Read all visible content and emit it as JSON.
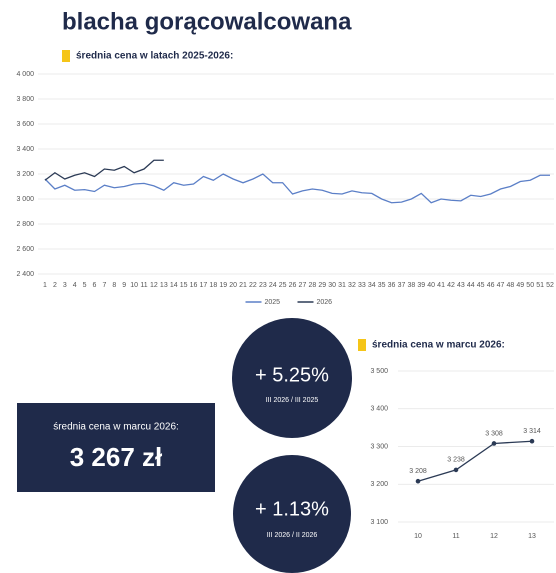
{
  "header": {
    "title": "blacha gorącowalcowana"
  },
  "summary": {
    "label": "średnia cena w marcu 2026:",
    "value": "3 267 zł"
  },
  "circles": [
    {
      "value": "+ 5.25%",
      "caption": "III 2026 / III 2025"
    },
    {
      "value": "+ 1.13%",
      "caption": "III 2026 / II 2026"
    }
  ],
  "chart_data": [
    {
      "type": "line",
      "title": "średnia cena w latach 2025-2026:",
      "categories": [
        "1",
        "2",
        "3",
        "4",
        "5",
        "6",
        "7",
        "8",
        "9",
        "10",
        "11",
        "12",
        "13",
        "14",
        "15",
        "16",
        "17",
        "18",
        "19",
        "20",
        "21",
        "22",
        "23",
        "24",
        "25",
        "26",
        "27",
        "28",
        "29",
        "30",
        "31",
        "32",
        "33",
        "34",
        "35",
        "36",
        "37",
        "38",
        "39",
        "40",
        "41",
        "42",
        "43",
        "44",
        "45",
        "46",
        "47",
        "48",
        "49",
        "50",
        "51",
        "52"
      ],
      "series": [
        {
          "name": "2025",
          "color": "#5b7fc7",
          "values": [
            3160,
            3080,
            3110,
            3070,
            3075,
            3060,
            3110,
            3090,
            3100,
            3120,
            3125,
            3105,
            3070,
            3130,
            3110,
            3120,
            3180,
            3150,
            3200,
            3160,
            3130,
            3160,
            3200,
            3130,
            3130,
            3040,
            3065,
            3080,
            3070,
            3045,
            3040,
            3065,
            3050,
            3045,
            3000,
            2970,
            2975,
            3000,
            3045,
            2970,
            3000,
            2990,
            2985,
            3030,
            3020,
            3040,
            3080,
            3100,
            3140,
            3150,
            3190,
            3190
          ]
        },
        {
          "name": "2026",
          "color": "#2b3a55",
          "values": [
            3150,
            3210,
            3160,
            3190,
            3210,
            3180,
            3240,
            3230,
            3260,
            3210,
            3240,
            3310,
            3310,
            null,
            null,
            null,
            null,
            null,
            null,
            null,
            null,
            null,
            null,
            null,
            null,
            null,
            null,
            null,
            null,
            null,
            null,
            null,
            null,
            null,
            null,
            null,
            null,
            null,
            null,
            null,
            null,
            null,
            null,
            null,
            null,
            null,
            null,
            null,
            null,
            null,
            null,
            null
          ]
        }
      ],
      "ylim": [
        2400,
        4000
      ],
      "yticks": [
        {
          "value": 2400,
          "label": "2 400"
        },
        {
          "value": 2600,
          "label": "2 600"
        },
        {
          "value": 2800,
          "label": "2 800"
        },
        {
          "value": 3000,
          "label": "3 000"
        },
        {
          "value": 3200,
          "label": "3 200"
        },
        {
          "value": 3400,
          "label": "3 400"
        },
        {
          "value": 3600,
          "label": "3 600"
        },
        {
          "value": 3800,
          "label": "3 800"
        },
        {
          "value": 4000,
          "label": "4 000"
        }
      ],
      "grid": true,
      "legend": "bottom"
    },
    {
      "type": "line",
      "title": "średnia cena w marcu 2026:",
      "categories": [
        "10",
        "11",
        "12",
        "13"
      ],
      "series": [
        {
          "name": null,
          "color": "#2b3a55",
          "values": [
            3208,
            3238,
            3308,
            3314
          ],
          "value_labels": [
            "3 208",
            "3 238",
            "3 308",
            "3 314"
          ]
        }
      ],
      "ylim": [
        3100,
        3500
      ],
      "yticks": [
        {
          "value": 3100,
          "label": "3 100"
        },
        {
          "value": 3200,
          "label": "3 200"
        },
        {
          "value": 3300,
          "label": "3 300"
        },
        {
          "value": 3400,
          "label": "3 400"
        },
        {
          "value": 3500,
          "label": "3 500"
        }
      ],
      "grid": true
    }
  ]
}
